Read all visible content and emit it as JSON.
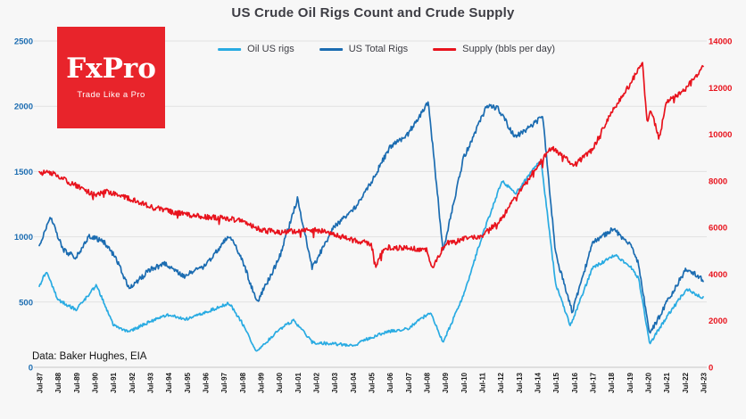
{
  "source_note": "Data: Baker Hughes, EIA",
  "logo": {
    "brand": "FxPro",
    "tagline": "Trade Like a Pro",
    "bg_color": "#e8242b"
  },
  "colors": {
    "background": "#f7f7f7",
    "grid": "#e2e2e2",
    "axis_line": "#c4c4c4",
    "x_tick": "#1a1a1a",
    "title": "#3d3d44"
  },
  "chart_data": {
    "type": "line",
    "title": "US Crude Oil Rigs Count and Crude Supply",
    "grid": true,
    "legend_position": "top",
    "x_tick_labels": [
      "Jul-87",
      "Jul-88",
      "Jul-89",
      "Jul-90",
      "Jul-91",
      "Jul-92",
      "Jul-93",
      "Jul-94",
      "Jul-95",
      "Jul-96",
      "Jul-97",
      "Jul-98",
      "Jul-99",
      "Jul-00",
      "Jul-01",
      "Jul-02",
      "Jul-03",
      "Jul-04",
      "Jul-05",
      "Jul-06",
      "Jul-07",
      "Jul-08",
      "Jul-09",
      "Jul-10",
      "Jul-11",
      "Jul-12",
      "Jul-13",
      "Jul-14",
      "Jul-15",
      "Jul-16",
      "Jul-17",
      "Jul-18",
      "Jul-19",
      "Jul-20",
      "Jul-21",
      "Jul-22",
      "Jul-23"
    ],
    "left_axis": {
      "min": 0,
      "max": 2500,
      "ticks": [
        0,
        500,
        1000,
        1500,
        2000,
        2500
      ],
      "color": "#1b6cb1"
    },
    "right_axis": {
      "min": 0,
      "max": 14000,
      "ticks": [
        0,
        2000,
        4000,
        6000,
        8000,
        10000,
        12000,
        14000
      ],
      "color": "#e8131d"
    },
    "series": [
      {
        "name": "Oil US rigs",
        "color": "#29abe2",
        "axis": "left",
        "points": [
          [
            1987.5,
            620
          ],
          [
            1987.9,
            740
          ],
          [
            1988.5,
            520
          ],
          [
            1989.5,
            440
          ],
          [
            1990.6,
            630
          ],
          [
            1991.5,
            330
          ],
          [
            1992.3,
            270
          ],
          [
            1993.5,
            350
          ],
          [
            1994.5,
            400
          ],
          [
            1995.5,
            370
          ],
          [
            1996.5,
            420
          ],
          [
            1997.8,
            490
          ],
          [
            1998.5,
            340
          ],
          [
            1999.3,
            115
          ],
          [
            2000.5,
            290
          ],
          [
            2001.3,
            360
          ],
          [
            2002.3,
            190
          ],
          [
            2003.5,
            180
          ],
          [
            2004.5,
            165
          ],
          [
            2005.5,
            230
          ],
          [
            2006.5,
            275
          ],
          [
            2007.5,
            300
          ],
          [
            2008.7,
            420
          ],
          [
            2009.4,
            190
          ],
          [
            2010.5,
            550
          ],
          [
            2011.5,
            1000
          ],
          [
            2012.6,
            1430
          ],
          [
            2013.3,
            1330
          ],
          [
            2014.7,
            1590
          ],
          [
            2015.5,
            640
          ],
          [
            2016.3,
            320
          ],
          [
            2017.5,
            760
          ],
          [
            2018.7,
            860
          ],
          [
            2019.5,
            780
          ],
          [
            2020.0,
            680
          ],
          [
            2020.6,
            180
          ],
          [
            2021.5,
            380
          ],
          [
            2022.6,
            600
          ],
          [
            2023.5,
            530
          ]
        ]
      },
      {
        "name": "US Total Rigs",
        "color": "#1b6cb1",
        "axis": "left",
        "points": [
          [
            1987.5,
            930
          ],
          [
            1988.1,
            1150
          ],
          [
            1988.8,
            900
          ],
          [
            1989.5,
            840
          ],
          [
            1990.2,
            1010
          ],
          [
            1991.0,
            960
          ],
          [
            1991.6,
            850
          ],
          [
            1992.4,
            600
          ],
          [
            1993.5,
            750
          ],
          [
            1994.3,
            790
          ],
          [
            1995.4,
            700
          ],
          [
            1996.5,
            780
          ],
          [
            1997.8,
            1010
          ],
          [
            1998.5,
            830
          ],
          [
            1999.3,
            495
          ],
          [
            2000.5,
            830
          ],
          [
            2001.5,
            1290
          ],
          [
            2002.3,
            760
          ],
          [
            2003.5,
            1080
          ],
          [
            2004.5,
            1200
          ],
          [
            2005.5,
            1420
          ],
          [
            2006.5,
            1680
          ],
          [
            2007.5,
            1790
          ],
          [
            2008.6,
            2030
          ],
          [
            2009.4,
            890
          ],
          [
            2010.5,
            1600
          ],
          [
            2011.8,
            2010
          ],
          [
            2012.4,
            1980
          ],
          [
            2013.3,
            1760
          ],
          [
            2014.8,
            1920
          ],
          [
            2015.5,
            870
          ],
          [
            2016.4,
            420
          ],
          [
            2017.5,
            950
          ],
          [
            2018.6,
            1060
          ],
          [
            2019.5,
            950
          ],
          [
            2020.0,
            790
          ],
          [
            2020.6,
            250
          ],
          [
            2021.5,
            490
          ],
          [
            2022.6,
            760
          ],
          [
            2023.5,
            670
          ]
        ]
      },
      {
        "name": "Supply (bbls per day)",
        "color": "#e8131d",
        "axis": "right",
        "points": [
          [
            1987.5,
            8300
          ],
          [
            1988.0,
            8400
          ],
          [
            1988.5,
            8200
          ],
          [
            1989.5,
            7800
          ],
          [
            1990.5,
            7400
          ],
          [
            1991.2,
            7550
          ],
          [
            1992.5,
            7200
          ],
          [
            1993.5,
            6900
          ],
          [
            1994.5,
            6700
          ],
          [
            1995.5,
            6550
          ],
          [
            1996.5,
            6450
          ],
          [
            1997.5,
            6400
          ],
          [
            1998.5,
            6300
          ],
          [
            1999.5,
            5900
          ],
          [
            2000.5,
            5800
          ],
          [
            2001.5,
            5850
          ],
          [
            2002.5,
            5900
          ],
          [
            2003.5,
            5700
          ],
          [
            2004.5,
            5450
          ],
          [
            2005.5,
            5300
          ],
          [
            2005.75,
            4300
          ],
          [
            2006.2,
            5150
          ],
          [
            2007.5,
            5100
          ],
          [
            2008.5,
            5050
          ],
          [
            2008.8,
            4200
          ],
          [
            2009.5,
            5300
          ],
          [
            2010.5,
            5500
          ],
          [
            2011.5,
            5650
          ],
          [
            2012.5,
            6300
          ],
          [
            2013.5,
            7500
          ],
          [
            2014.5,
            8600
          ],
          [
            2015.3,
            9450
          ],
          [
            2016.5,
            8650
          ],
          [
            2017.5,
            9350
          ],
          [
            2018.5,
            10900
          ],
          [
            2019.5,
            12100
          ],
          [
            2020.2,
            13100
          ],
          [
            2020.45,
            10600
          ],
          [
            2020.7,
            11000
          ],
          [
            2021.1,
            9800
          ],
          [
            2021.5,
            11350
          ],
          [
            2022.5,
            11900
          ],
          [
            2023.5,
            12900
          ]
        ]
      }
    ]
  }
}
